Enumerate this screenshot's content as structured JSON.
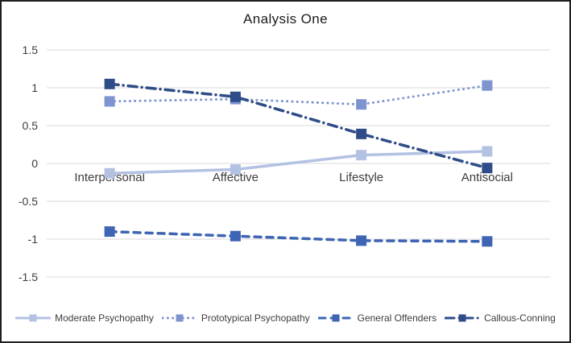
{
  "chart_data": {
    "type": "line",
    "title": "Analysis One",
    "xlabel": "",
    "ylabel": "",
    "categories": [
      "Interpersonal",
      "Affective",
      "Lifestyle",
      "Antisocial"
    ],
    "yticks": [
      1.5,
      1,
      0.5,
      0,
      -0.5,
      -1,
      -1.5
    ],
    "ylim": [
      -1.5,
      1.5
    ],
    "grid": true,
    "legend_position": "bottom",
    "series": [
      {
        "name": "Moderate Psychopathy",
        "color": "#b3c1e2",
        "line_style": "solid",
        "marker": "square",
        "values": [
          -0.13,
          -0.08,
          0.11,
          0.16
        ]
      },
      {
        "name": "Prototypical Psychopathy",
        "color": "#7d94d0",
        "line_style": "dotted",
        "marker": "square",
        "values": [
          0.82,
          0.85,
          0.78,
          1.03
        ]
      },
      {
        "name": "General Offenders",
        "color": "#3e64b4",
        "line_style": "dashed",
        "marker": "square",
        "values": [
          -0.9,
          -0.96,
          -1.02,
          -1.03
        ]
      },
      {
        "name": "Callous-Conning",
        "color": "#2e4c87",
        "line_style": "dashdot",
        "marker": "square",
        "values": [
          1.05,
          0.88,
          0.39,
          -0.06
        ]
      }
    ]
  },
  "colors": {
    "gridline": "#d9d9d9",
    "axis_text": "#3c3c3c",
    "title_text": "#1a1a1a",
    "border": "#1f1f1f",
    "background": "#ffffff"
  }
}
